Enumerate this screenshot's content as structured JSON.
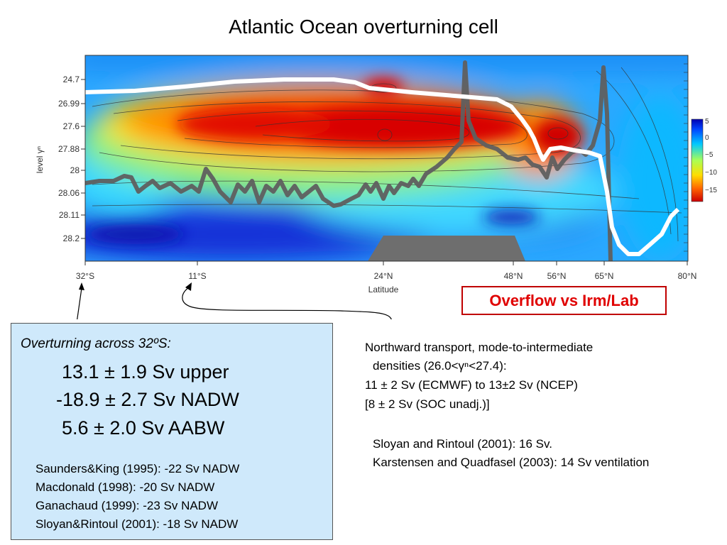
{
  "title": "Atlantic Ocean overturning cell",
  "plot": {
    "ylabel_text": "level γⁿ",
    "yticks": [
      "24.7",
      "26.99",
      "27.6",
      "27.88",
      "28",
      "28.06",
      "28.11",
      "28.2"
    ],
    "xticks": [
      "32°S",
      "11°S",
      "24°N",
      "48°N",
      "56°N",
      "65°N",
      "80°N"
    ],
    "xlabel": "Latitude",
    "colorbar_ticks": [
      "5",
      "0",
      "−5",
      "−10",
      "−15"
    ],
    "colors": {
      "deep_blue": "#1a2fd8",
      "red": "#d40000",
      "white_line": "#ffffff",
      "gray_line": "#5f5f5f"
    }
  },
  "overflow_label": "Overflow vs Irm/Lab",
  "overturning": {
    "heading": "Overturning across 32ºS:",
    "upper": "13.1 ± 1.9 Sv upper",
    "nadw": "-18.9 ± 2.7 Sv NADW",
    "aabw": "5.6 ± 2.0 Sv AABW",
    "refs": [
      "Saunders&King (1995): -22 Sv NADW",
      "Macdonald (1998): -20 Sv NADW",
      "Ganachaud (1999): -23 Sv NADW",
      "Sloyan&Rintoul (2001): -18 Sv NADW"
    ]
  },
  "northward": {
    "line1": "Northward transport, mode-to-intermediate",
    "line2": "densities (26.0<γⁿ<27.4):",
    "line3": "11 ± 2 Sv (ECMWF) to 13±2 Sv (NCEP)",
    "line4": "[8 ± 2 Sv (SOC unadj.)]",
    "line5": "Sloyan and Rintoul (2001): 16 Sv.",
    "line6": "Karstensen and Quadfasel (2003): 14 Sv ventilation"
  }
}
